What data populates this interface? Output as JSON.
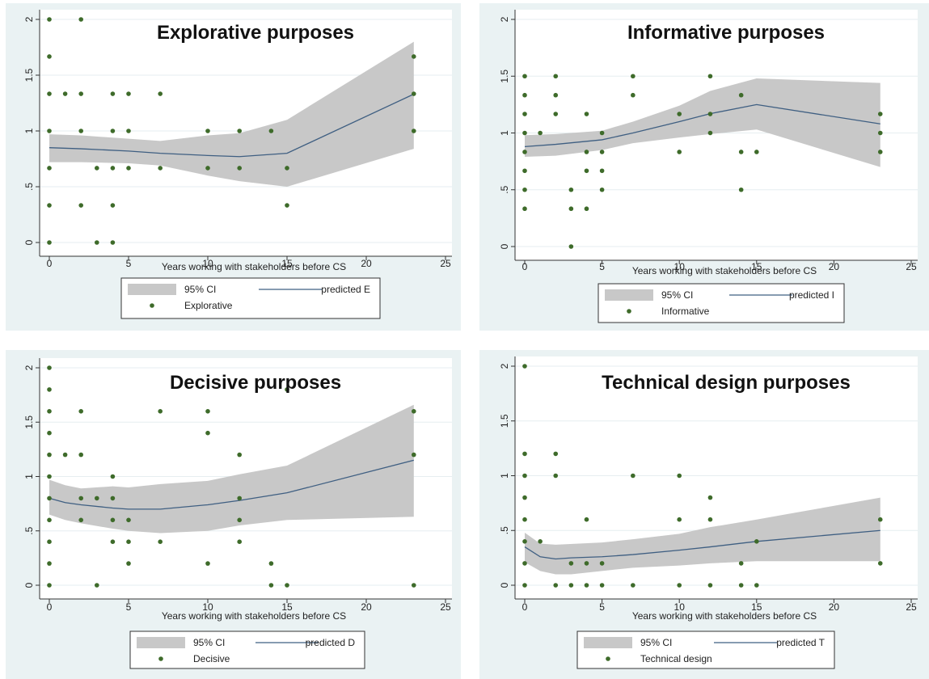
{
  "colors": {
    "panel_bg": "#eaf2f3",
    "plot_bg": "#ffffff",
    "ci_band": "#c8c8c8",
    "predicted_line": "#3f5f82",
    "point": "#3e6b2a",
    "grid": "#e6eef0"
  },
  "chart_data": [
    {
      "type": "scatter",
      "title": "Explorative purposes",
      "xlabel": "Years working with stakeholders before CS",
      "ylabel": "",
      "xlim": [
        0,
        25
      ],
      "ylim": [
        0,
        2
      ],
      "xticks": [
        0,
        5,
        10,
        15,
        20,
        25
      ],
      "yticks": [
        0,
        0.5,
        1,
        1.5,
        2
      ],
      "ytick_labels": [
        "0",
        ".5",
        "1",
        "1.5",
        "2"
      ],
      "grid": true,
      "legend": {
        "placement": "bottom",
        "ci_label": "95% CI",
        "line_label": "predicted E",
        "points_label": "Explorative"
      },
      "points": [
        [
          0,
          2
        ],
        [
          0,
          1.667
        ],
        [
          0,
          1.333
        ],
        [
          0,
          1
        ],
        [
          0,
          0.667
        ],
        [
          0,
          0.333
        ],
        [
          0,
          0
        ],
        [
          1,
          1.333
        ],
        [
          2,
          2
        ],
        [
          2,
          1.333
        ],
        [
          2,
          1
        ],
        [
          2,
          0.333
        ],
        [
          3,
          0.667
        ],
        [
          3,
          0
        ],
        [
          4,
          1.333
        ],
        [
          4,
          1
        ],
        [
          4,
          0.667
        ],
        [
          4,
          0.333
        ],
        [
          4,
          0
        ],
        [
          5,
          1.333
        ],
        [
          5,
          1
        ],
        [
          5,
          0.667
        ],
        [
          7,
          1.333
        ],
        [
          7,
          0.667
        ],
        [
          10,
          1
        ],
        [
          10,
          0.667
        ],
        [
          12,
          1
        ],
        [
          12,
          0.667
        ],
        [
          14,
          1
        ],
        [
          15,
          0.667
        ],
        [
          15,
          0.333
        ],
        [
          23,
          1.667
        ],
        [
          23,
          1.333
        ],
        [
          23,
          1
        ]
      ],
      "predicted": [
        [
          0,
          0.85
        ],
        [
          2,
          0.84
        ],
        [
          5,
          0.82
        ],
        [
          7,
          0.8
        ],
        [
          10,
          0.78
        ],
        [
          12,
          0.77
        ],
        [
          15,
          0.8
        ],
        [
          23,
          1.33
        ]
      ],
      "ci_upper": [
        [
          0,
          0.97
        ],
        [
          2,
          0.96
        ],
        [
          5,
          0.93
        ],
        [
          7,
          0.91
        ],
        [
          10,
          0.96
        ],
        [
          12,
          0.98
        ],
        [
          15,
          1.1
        ],
        [
          23,
          1.8
        ]
      ],
      "ci_lower": [
        [
          0,
          0.72
        ],
        [
          2,
          0.72
        ],
        [
          5,
          0.71
        ],
        [
          7,
          0.69
        ],
        [
          10,
          0.6
        ],
        [
          12,
          0.55
        ],
        [
          15,
          0.5
        ],
        [
          23,
          0.84
        ]
      ]
    },
    {
      "type": "scatter",
      "title": "Informative purposes",
      "xlabel": "Years working with stakeholders before CS",
      "ylabel": "",
      "xlim": [
        0,
        25
      ],
      "ylim": [
        0,
        2
      ],
      "xticks": [
        0,
        5,
        10,
        15,
        20,
        25
      ],
      "yticks": [
        0,
        0.5,
        1,
        1.5,
        2
      ],
      "ytick_labels": [
        "0",
        ".5",
        "1",
        "1.5",
        "2"
      ],
      "grid": true,
      "legend": {
        "placement": "bottom",
        "ci_label": "95% CI",
        "line_label": "predicted I",
        "points_label": "Informative"
      },
      "points": [
        [
          0,
          1.5
        ],
        [
          0,
          1.333
        ],
        [
          0,
          1.167
        ],
        [
          0,
          1
        ],
        [
          0,
          0.833
        ],
        [
          0,
          0.667
        ],
        [
          0,
          0.5
        ],
        [
          0,
          0.333
        ],
        [
          1,
          1
        ],
        [
          2,
          1.5
        ],
        [
          2,
          1.333
        ],
        [
          2,
          1.167
        ],
        [
          3,
          0.5
        ],
        [
          3,
          0.333
        ],
        [
          3,
          0
        ],
        [
          4,
          1.167
        ],
        [
          4,
          0.833
        ],
        [
          4,
          0.667
        ],
        [
          4,
          0.333
        ],
        [
          5,
          1
        ],
        [
          5,
          0.833
        ],
        [
          5,
          0.667
        ],
        [
          5,
          0.5
        ],
        [
          7,
          1.5
        ],
        [
          7,
          1.333
        ],
        [
          10,
          1.167
        ],
        [
          10,
          0.833
        ],
        [
          12,
          1.5
        ],
        [
          12,
          1.167
        ],
        [
          12,
          1
        ],
        [
          14,
          1.333
        ],
        [
          14,
          0.833
        ],
        [
          14,
          0.5
        ],
        [
          15,
          0.833
        ],
        [
          23,
          1.167
        ],
        [
          23,
          1
        ],
        [
          23,
          0.833
        ]
      ],
      "predicted": [
        [
          0,
          0.88
        ],
        [
          2,
          0.9
        ],
        [
          5,
          0.94
        ],
        [
          7,
          1.0
        ],
        [
          10,
          1.1
        ],
        [
          12,
          1.17
        ],
        [
          15,
          1.25
        ],
        [
          23,
          1.08
        ]
      ],
      "ci_upper": [
        [
          0,
          0.98
        ],
        [
          2,
          0.99
        ],
        [
          5,
          1.02
        ],
        [
          7,
          1.1
        ],
        [
          10,
          1.24
        ],
        [
          12,
          1.37
        ],
        [
          15,
          1.48
        ],
        [
          23,
          1.44
        ]
      ],
      "ci_lower": [
        [
          0,
          0.79
        ],
        [
          2,
          0.8
        ],
        [
          5,
          0.85
        ],
        [
          7,
          0.91
        ],
        [
          10,
          0.96
        ],
        [
          12,
          0.99
        ],
        [
          15,
          1.03
        ],
        [
          23,
          0.7
        ]
      ]
    },
    {
      "type": "scatter",
      "title": "Decisive purposes",
      "xlabel": "Years working with stakeholders before CS",
      "ylabel": "",
      "xlim": [
        0,
        25
      ],
      "ylim": [
        0,
        2
      ],
      "xticks": [
        0,
        5,
        10,
        15,
        20,
        25
      ],
      "yticks": [
        0,
        0.5,
        1,
        1.5,
        2
      ],
      "ytick_labels": [
        "0",
        ".5",
        "1",
        "1.5",
        "2"
      ],
      "grid": true,
      "legend": {
        "placement": "bottom",
        "ci_label": "95% CI",
        "line_label": "predicted D",
        "points_label": "Decisive"
      },
      "points": [
        [
          0,
          2
        ],
        [
          0,
          1.8
        ],
        [
          0,
          1.6
        ],
        [
          0,
          1.4
        ],
        [
          0,
          1.2
        ],
        [
          0,
          1
        ],
        [
          0,
          0.8
        ],
        [
          0,
          0.6
        ],
        [
          0,
          0.4
        ],
        [
          0,
          0.2
        ],
        [
          0,
          0
        ],
        [
          1,
          1.2
        ],
        [
          2,
          1.6
        ],
        [
          2,
          1.2
        ],
        [
          2,
          0.8
        ],
        [
          2,
          0.6
        ],
        [
          3,
          0.8
        ],
        [
          3,
          0
        ],
        [
          4,
          1
        ],
        [
          4,
          0.8
        ],
        [
          4,
          0.6
        ],
        [
          4,
          0.4
        ],
        [
          5,
          0.6
        ],
        [
          5,
          0.4
        ],
        [
          5,
          0.2
        ],
        [
          7,
          1.6
        ],
        [
          7,
          0.4
        ],
        [
          10,
          1.6
        ],
        [
          10,
          1.4
        ],
        [
          10,
          0.2
        ],
        [
          12,
          1.2
        ],
        [
          12,
          0.8
        ],
        [
          12,
          0.6
        ],
        [
          12,
          0.4
        ],
        [
          14,
          0.2
        ],
        [
          14,
          0
        ],
        [
          15,
          1.8
        ],
        [
          15,
          0
        ],
        [
          23,
          1.6
        ],
        [
          23,
          1.2
        ],
        [
          23,
          0
        ]
      ],
      "predicted": [
        [
          0,
          0.8
        ],
        [
          1,
          0.76
        ],
        [
          2,
          0.74
        ],
        [
          4,
          0.71
        ],
        [
          5,
          0.7
        ],
        [
          7,
          0.7
        ],
        [
          10,
          0.74
        ],
        [
          12,
          0.78
        ],
        [
          15,
          0.85
        ],
        [
          23,
          1.15
        ]
      ],
      "ci_upper": [
        [
          0,
          0.97
        ],
        [
          1,
          0.92
        ],
        [
          2,
          0.89
        ],
        [
          4,
          0.91
        ],
        [
          5,
          0.9
        ],
        [
          7,
          0.93
        ],
        [
          10,
          0.96
        ],
        [
          12,
          1.02
        ],
        [
          15,
          1.1
        ],
        [
          23,
          1.66
        ]
      ],
      "ci_lower": [
        [
          0,
          0.65
        ],
        [
          1,
          0.6
        ],
        [
          2,
          0.57
        ],
        [
          4,
          0.52
        ],
        [
          5,
          0.5
        ],
        [
          7,
          0.48
        ],
        [
          10,
          0.5
        ],
        [
          12,
          0.55
        ],
        [
          15,
          0.6
        ],
        [
          23,
          0.63
        ]
      ]
    },
    {
      "type": "scatter",
      "title": "Technical design purposes",
      "xlabel": "Years working with stakeholders before CS",
      "ylabel": "",
      "xlim": [
        0,
        25
      ],
      "ylim": [
        0,
        2
      ],
      "xticks": [
        0,
        5,
        10,
        15,
        20,
        25
      ],
      "yticks": [
        0,
        0.5,
        1,
        1.5,
        2
      ],
      "ytick_labels": [
        "0",
        ".5",
        "1",
        "1.5",
        "2"
      ],
      "grid": true,
      "legend": {
        "placement": "bottom",
        "ci_label": "95% CI",
        "line_label": "predicted T",
        "points_label": "Technical design"
      },
      "points": [
        [
          0,
          2
        ],
        [
          0,
          1.2
        ],
        [
          0,
          1
        ],
        [
          0,
          0.8
        ],
        [
          0,
          0.6
        ],
        [
          0,
          0.4
        ],
        [
          0,
          0.2
        ],
        [
          0,
          0
        ],
        [
          1,
          0.4
        ],
        [
          2,
          1.2
        ],
        [
          2,
          1
        ],
        [
          2,
          0
        ],
        [
          3,
          0.2
        ],
        [
          3,
          0
        ],
        [
          4,
          0.6
        ],
        [
          4,
          0.2
        ],
        [
          4,
          0
        ],
        [
          5,
          0.2
        ],
        [
          5,
          0
        ],
        [
          7,
          1
        ],
        [
          7,
          0
        ],
        [
          10,
          1
        ],
        [
          10,
          0.6
        ],
        [
          10,
          0
        ],
        [
          12,
          0.8
        ],
        [
          12,
          0.6
        ],
        [
          12,
          0
        ],
        [
          14,
          0.2
        ],
        [
          14,
          0
        ],
        [
          15,
          0.4
        ],
        [
          15,
          0
        ],
        [
          23,
          0.6
        ],
        [
          23,
          0.2
        ]
      ],
      "predicted": [
        [
          0,
          0.35
        ],
        [
          1,
          0.26
        ],
        [
          2,
          0.24
        ],
        [
          3,
          0.25
        ],
        [
          5,
          0.26
        ],
        [
          7,
          0.28
        ],
        [
          10,
          0.32
        ],
        [
          12,
          0.35
        ],
        [
          15,
          0.4
        ],
        [
          23,
          0.5
        ]
      ],
      "ci_upper": [
        [
          0,
          0.48
        ],
        [
          1,
          0.38
        ],
        [
          2,
          0.37
        ],
        [
          5,
          0.39
        ],
        [
          7,
          0.42
        ],
        [
          10,
          0.47
        ],
        [
          12,
          0.53
        ],
        [
          15,
          0.6
        ],
        [
          23,
          0.8
        ]
      ],
      "ci_lower": [
        [
          0,
          0.21
        ],
        [
          1,
          0.13
        ],
        [
          2,
          0.1
        ],
        [
          3,
          0.1
        ],
        [
          5,
          0.13
        ],
        [
          7,
          0.16
        ],
        [
          10,
          0.18
        ],
        [
          12,
          0.2
        ],
        [
          15,
          0.22
        ],
        [
          23,
          0.22
        ]
      ]
    }
  ]
}
